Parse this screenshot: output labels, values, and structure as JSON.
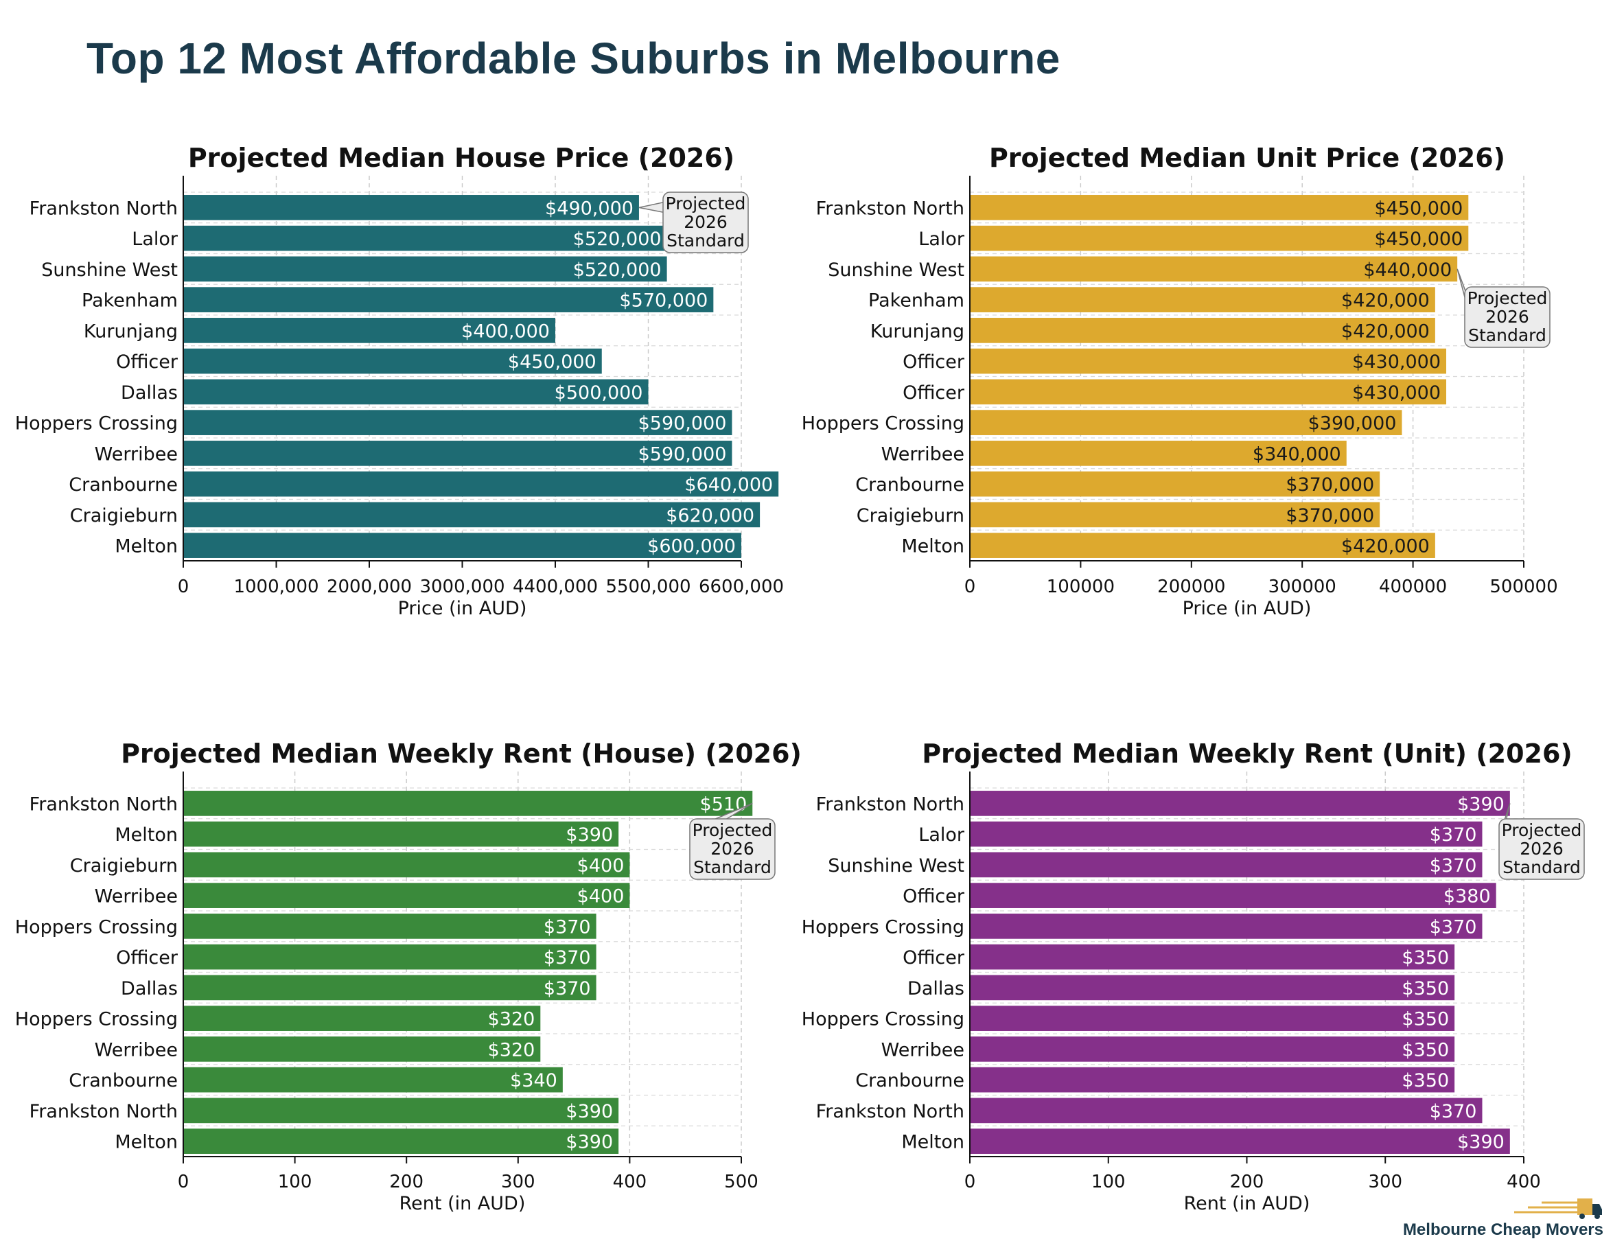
{
  "page_title": "Top 12 Most Affordable Suburbs in Melbourne",
  "brand": {
    "name": "Melbourne Cheap Movers",
    "icon": "truck-icon"
  },
  "chart_data": [
    {
      "type": "bar",
      "orientation": "horizontal",
      "title": "Projected Median House Price (2026)",
      "xlabel": "Price (in AUD)",
      "categories": [
        "Frankston North",
        "Lalor",
        "Sunshine West",
        "Pakenham",
        "Kurunjang",
        "Officer",
        "Dallas",
        "Hoppers Crossing",
        "Werribee",
        "Cranbourne",
        "Craigieburn",
        "Melton"
      ],
      "values": [
        490000,
        520000,
        520000,
        570000,
        400000,
        450000,
        500000,
        590000,
        590000,
        640000,
        620000,
        600000
      ],
      "value_labels": [
        "$490,000",
        "$520,000",
        "$520,000",
        "$570,000",
        "$400,000",
        "$450,000",
        "$500,000",
        "$590,000",
        "$590,000",
        "$640,000",
        "$620,000",
        "$600,000"
      ],
      "tick_labels": [
        "0",
        "1000,000",
        "2000,000",
        "3000,000",
        "4400,000",
        "5500,000",
        "6600,000"
      ],
      "xlim": [
        0,
        600000
      ],
      "bar_color": "#1e6b73",
      "label_color": "#ffffff",
      "grid": true,
      "callout": {
        "text": [
          "Projected",
          "2026",
          "Standard"
        ],
        "points_to": "Frankston North"
      }
    },
    {
      "type": "bar",
      "orientation": "horizontal",
      "title": "Projected Median Unit Price (2026)",
      "xlabel": "Price (in AUD)",
      "categories": [
        "Frankston North",
        "Lalor",
        "Sunshine West",
        "Pakenham",
        "Kurunjang",
        "Officer",
        "Officer",
        "Hoppers Crossing",
        "Werribee",
        "Cranbourne",
        "Craigieburn",
        "Melton"
      ],
      "values": [
        450000,
        450000,
        440000,
        420000,
        420000,
        430000,
        430000,
        390000,
        340000,
        370000,
        370000,
        420000
      ],
      "value_labels": [
        "$450,000",
        "$450,000",
        "$440,000",
        "$420,000",
        "$420,000",
        "$430,000",
        "$430,000",
        "$390,000",
        "$340,000",
        "$370,000",
        "$370,000",
        "$420,000"
      ],
      "tick_labels": [
        "0",
        "100000",
        "200000",
        "300000",
        "400000",
        "500000"
      ],
      "xlim": [
        0,
        500000
      ],
      "bar_color": "#dda92e",
      "label_color": "#1a1a1a",
      "grid": true,
      "callout": {
        "text": [
          "Projected",
          "2026",
          "Standard"
        ],
        "points_to": "Sunshine West"
      }
    },
    {
      "type": "bar",
      "orientation": "horizontal",
      "title": "Projected Median Weekly Rent (House) (2026)",
      "xlabel": "Rent (in AUD)",
      "categories": [
        "Frankston North",
        "Melton",
        "Craigieburn",
        "Werribee",
        "Hoppers Crossing",
        "Officer",
        "Dallas",
        "Hoppers Crossing",
        "Werribee",
        "Cranbourne",
        "Frankston North",
        "Melton"
      ],
      "values": [
        510,
        390,
        400,
        400,
        370,
        370,
        370,
        320,
        320,
        340,
        390,
        390
      ],
      "value_labels": [
        "$510",
        "$390",
        "$400",
        "$400",
        "$370",
        "$370",
        "$370",
        "$320",
        "$320",
        "$340",
        "$390",
        "$390"
      ],
      "tick_labels": [
        "0",
        "100",
        "200",
        "300",
        "400",
        "500"
      ],
      "xlim": [
        0,
        500
      ],
      "bar_color": "#3a8a3b",
      "label_color": "#ffffff",
      "grid": true,
      "callout": {
        "text": [
          "Projected",
          "2026",
          "Standard"
        ],
        "points_to": "Frankston North"
      }
    },
    {
      "type": "bar",
      "orientation": "horizontal",
      "title": "Projected Median Weekly Rent (Unit) (2026)",
      "xlabel": "Rent (in AUD)",
      "categories": [
        "Frankston North",
        "Lalor",
        "Sunshine West",
        "Officer",
        "Hoppers Crossing",
        "Officer",
        "Dallas",
        "Hoppers Crossing",
        "Werribee",
        "Cranbourne",
        "Frankston North",
        "Melton"
      ],
      "values": [
        390,
        370,
        370,
        380,
        370,
        350,
        350,
        350,
        350,
        350,
        370,
        390
      ],
      "value_labels": [
        "$390",
        "$370",
        "$370",
        "$380",
        "$370",
        "$350",
        "$350",
        "$350",
        "$350",
        "$350",
        "$370",
        "$390"
      ],
      "tick_labels": [
        "0",
        "100",
        "200",
        "300",
        "400"
      ],
      "xlim": [
        0,
        400
      ],
      "bar_color": "#85308a",
      "label_color": "#ffffff",
      "grid": true,
      "callout": {
        "text": [
          "Projected",
          "2026",
          "Standard"
        ],
        "points_to": "Frankston North"
      }
    }
  ]
}
